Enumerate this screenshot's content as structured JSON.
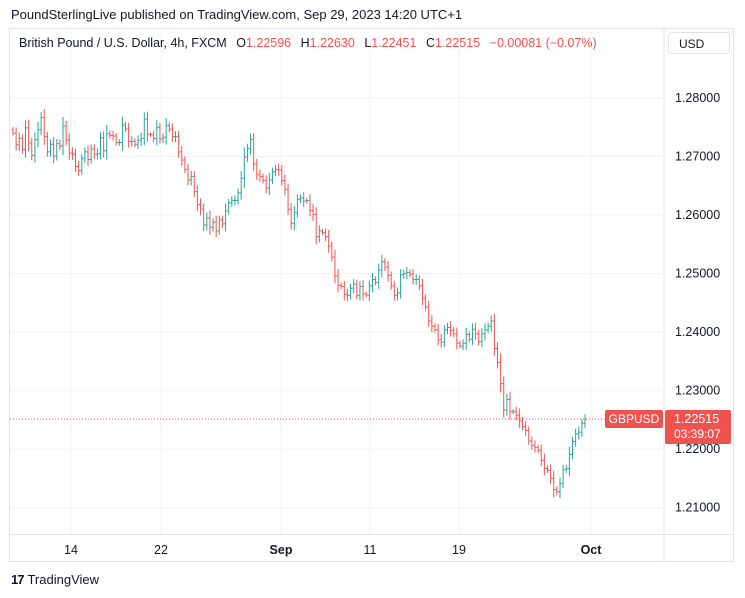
{
  "header": {
    "publisher_line": "PoundSterlingLive published on TradingView.com, Sep 29, 2023 14:20 UTC+1"
  },
  "legend": {
    "symbol": "British Pound / U.S. Dollar, 4h, FXCM",
    "open_label": "O",
    "open": "1.22596",
    "high_label": "H",
    "high": "1.22630",
    "low_label": "L",
    "low": "1.22451",
    "close_label": "C",
    "close": "1.22515",
    "change": "−0.00081 (−0.07%)"
  },
  "currency_button": "USD",
  "price_tag": {
    "symbol": "GBPUSD",
    "price": "1.22515",
    "countdown": "03:39:07"
  },
  "footer": {
    "brand": "TradingView",
    "logo_icon": "tradingview-logo-icon"
  },
  "colors": {
    "up": "#26a69a",
    "down": "#ef5350",
    "grid": "#f0f3fa",
    "text": "#131722"
  },
  "chart_data": {
    "type": "ohlc",
    "symbol": "GBPUSD",
    "timeframe": "4h",
    "x_ticks": [
      "14",
      "22",
      "Sep",
      "11",
      "19",
      "Oct"
    ],
    "y_ticks": [
      "1.28000",
      "1.27000",
      "1.26000",
      "1.25000",
      "1.24000",
      "1.23000",
      "1.22000",
      "1.21000"
    ],
    "y_range": [
      1.2055,
      1.2865
    ],
    "last_price": 1.22515,
    "grid": true,
    "closes": [
      1.274,
      1.272,
      1.2731,
      1.2712,
      1.2749,
      1.2723,
      1.2702,
      1.2729,
      1.2746,
      1.2767,
      1.2734,
      1.2708,
      1.2721,
      1.2701,
      1.2722,
      1.2718,
      1.2752,
      1.2728,
      1.2706,
      1.2704,
      1.2683,
      1.2676,
      1.2697,
      1.2708,
      1.2695,
      1.2713,
      1.2704,
      1.2705,
      1.2732,
      1.271,
      1.2739,
      1.2736,
      1.2735,
      1.2724,
      1.2724,
      1.2754,
      1.2747,
      1.2726,
      1.2726,
      1.2721,
      1.2728,
      1.2731,
      1.2764,
      1.2738,
      1.2737,
      1.2731,
      1.275,
      1.273,
      1.2733,
      1.2753,
      1.2747,
      1.2734,
      1.2734,
      1.2708,
      1.2694,
      1.2678,
      1.266,
      1.2666,
      1.264,
      1.2618,
      1.261,
      1.2583,
      1.2595,
      1.2579,
      1.2588,
      1.2573,
      1.2592,
      1.2585,
      1.2607,
      1.2621,
      1.2625,
      1.2625,
      1.2638,
      1.2663,
      1.2699,
      1.2714,
      1.2729,
      1.2687,
      1.2669,
      1.2666,
      1.2659,
      1.2646,
      1.266,
      1.2674,
      1.2678,
      1.2677,
      1.2659,
      1.2644,
      1.261,
      1.2586,
      1.2604,
      1.2627,
      1.2629,
      1.2624,
      1.2625,
      1.2608,
      1.2601,
      1.2563,
      1.2573,
      1.257,
      1.2563,
      1.2547,
      1.2528,
      1.2496,
      1.248,
      1.2478,
      1.2464,
      1.2463,
      1.2475,
      1.2482,
      1.2463,
      1.2478,
      1.2465,
      1.2463,
      1.2479,
      1.249,
      1.2485,
      1.2506,
      1.252,
      1.2511,
      1.2497,
      1.2479,
      1.2463,
      1.2467,
      1.2498,
      1.25,
      1.2502,
      1.2499,
      1.249,
      1.249,
      1.2479,
      1.2458,
      1.2443,
      1.2419,
      1.241,
      1.2404,
      1.2387,
      1.2383,
      1.2404,
      1.2408,
      1.2403,
      1.2397,
      1.2381,
      1.2376,
      1.2381,
      1.2396,
      1.2388,
      1.2405,
      1.2397,
      1.2384,
      1.2397,
      1.2404,
      1.241,
      1.2419,
      1.2372,
      1.2348,
      1.2312,
      1.2267,
      1.2285,
      1.2264,
      1.2264,
      1.2258,
      1.2248,
      1.2239,
      1.2232,
      1.2214,
      1.2206,
      1.2203,
      1.2198,
      1.2181,
      1.2167,
      1.2164,
      1.215,
      1.2131,
      1.2127,
      1.2141,
      1.2165,
      1.2167,
      1.2191,
      1.2213,
      1.2226,
      1.2229,
      1.2244,
      1.2251
    ]
  }
}
